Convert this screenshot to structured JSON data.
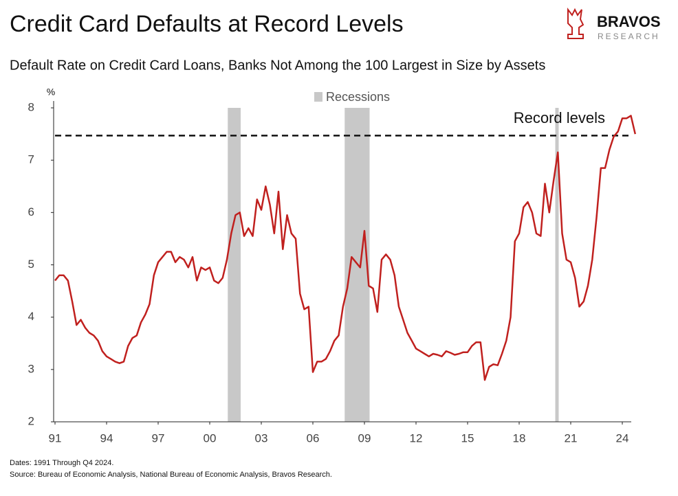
{
  "chart_data": {
    "type": "line",
    "title": "Credit Card Defaults at Record Levels",
    "subtitle": "Default Rate on Credit Card Loans, Banks Not Among the 100 Largest in Size by Assets",
    "brand": "BRAVOS",
    "brand_sub": "RESEARCH",
    "y_unit": "%",
    "annotation": {
      "text": "Record levels",
      "value": 7.47
    },
    "recession_label": "Recessions",
    "recession_color": "#c8c8c8",
    "recessions": [
      {
        "start": 2001.05,
        "end": 2001.8
      },
      {
        "start": 2007.85,
        "end": 2009.3
      },
      {
        "start": 2020.1,
        "end": 2020.3
      }
    ],
    "notes": [
      "Dates: 1991 Through Q4 2024.",
      "Source: Bureau of Economic Analysis, National Bureau of Economic Analysis, Bravos Research."
    ],
    "xlim": [
      1991,
      2025
    ],
    "xticks": [
      {
        "value": 1991,
        "label": "91"
      },
      {
        "value": 1994,
        "label": "94"
      },
      {
        "value": 1997,
        "label": "97"
      },
      {
        "value": 2000,
        "label": "00"
      },
      {
        "value": 2003,
        "label": "03"
      },
      {
        "value": 2006,
        "label": "06"
      },
      {
        "value": 2009,
        "label": "09"
      },
      {
        "value": 2012,
        "label": "12"
      },
      {
        "value": 2015,
        "label": "15"
      },
      {
        "value": 2018,
        "label": "18"
      },
      {
        "value": 2021,
        "label": "21"
      },
      {
        "value": 2024,
        "label": "24"
      }
    ],
    "ylim": [
      2,
      8
    ],
    "yticks": [
      2,
      3,
      4,
      5,
      6,
      7,
      8
    ],
    "grid": false,
    "series": [
      {
        "name": "Default Rate",
        "color": "#c0201e",
        "x": [
          1991,
          1991.25,
          1991.5,
          1991.75,
          1992,
          1992.25,
          1992.5,
          1992.75,
          1993,
          1993.25,
          1993.5,
          1993.75,
          1994,
          1994.25,
          1994.5,
          1994.75,
          1995,
          1995.25,
          1995.5,
          1995.75,
          1996,
          1996.25,
          1996.5,
          1996.75,
          1997,
          1997.25,
          1997.5,
          1997.75,
          1998,
          1998.25,
          1998.5,
          1998.75,
          1999,
          1999.25,
          1999.5,
          1999.75,
          2000,
          2000.25,
          2000.5,
          2000.75,
          2001,
          2001.25,
          2001.5,
          2001.75,
          2002,
          2002.25,
          2002.5,
          2002.75,
          2003,
          2003.25,
          2003.5,
          2003.75,
          2004,
          2004.25,
          2004.5,
          2004.75,
          2005,
          2005.25,
          2005.5,
          2005.75,
          2006,
          2006.25,
          2006.5,
          2006.75,
          2007,
          2007.25,
          2007.5,
          2007.75,
          2008,
          2008.25,
          2008.5,
          2008.75,
          2009,
          2009.25,
          2009.5,
          2009.75,
          2010,
          2010.25,
          2010.5,
          2010.75,
          2011,
          2011.25,
          2011.5,
          2011.75,
          2012,
          2012.25,
          2012.5,
          2012.75,
          2013,
          2013.25,
          2013.5,
          2013.75,
          2014,
          2014.25,
          2014.5,
          2014.75,
          2015,
          2015.25,
          2015.5,
          2015.75,
          2016,
          2016.25,
          2016.5,
          2016.75,
          2017,
          2017.25,
          2017.5,
          2017.75,
          2018,
          2018.25,
          2018.5,
          2018.75,
          2019,
          2019.25,
          2019.5,
          2019.75,
          2020,
          2020.25,
          2020.5,
          2020.75,
          2021,
          2021.25,
          2021.5,
          2021.75,
          2022,
          2022.25,
          2022.5,
          2022.75,
          2023,
          2023.25,
          2023.5,
          2023.75,
          2024,
          2024.25,
          2024.5,
          2024.75
        ],
        "values": [
          4.7,
          4.8,
          4.8,
          4.7,
          4.3,
          3.85,
          3.95,
          3.8,
          3.7,
          3.65,
          3.55,
          3.35,
          3.25,
          3.2,
          3.15,
          3.12,
          3.15,
          3.45,
          3.6,
          3.65,
          3.9,
          4.05,
          4.25,
          4.8,
          5.05,
          5.15,
          5.25,
          5.25,
          5.05,
          5.15,
          5.1,
          4.95,
          5.15,
          4.7,
          4.95,
          4.9,
          4.95,
          4.7,
          4.65,
          4.75,
          5.1,
          5.6,
          5.95,
          6.0,
          5.55,
          5.7,
          5.55,
          6.25,
          6.05,
          6.5,
          6.15,
          5.6,
          6.4,
          5.3,
          5.95,
          5.6,
          5.5,
          4.45,
          4.15,
          4.2,
          2.95,
          3.15,
          3.15,
          3.2,
          3.35,
          3.55,
          3.65,
          4.2,
          4.55,
          5.15,
          5.05,
          4.95,
          5.65,
          4.6,
          4.55,
          4.1,
          5.1,
          5.2,
          5.1,
          4.8,
          4.2,
          3.95,
          3.7,
          3.55,
          3.4,
          3.35,
          3.3,
          3.25,
          3.3,
          3.28,
          3.25,
          3.35,
          3.32,
          3.28,
          3.3,
          3.33,
          3.33,
          3.45,
          3.52,
          3.52,
          2.8,
          3.05,
          3.1,
          3.08,
          3.3,
          3.55,
          4.0,
          5.45,
          5.6,
          6.1,
          6.2,
          6.0,
          5.6,
          5.55,
          6.55,
          6.0,
          6.6,
          7.15,
          5.6,
          5.1,
          5.05,
          4.75,
          4.2,
          4.3,
          4.6,
          5.1,
          5.9,
          6.85,
          6.85,
          7.2,
          7.45,
          7.55,
          7.8,
          7.8,
          7.85,
          7.5
        ]
      }
    ]
  }
}
